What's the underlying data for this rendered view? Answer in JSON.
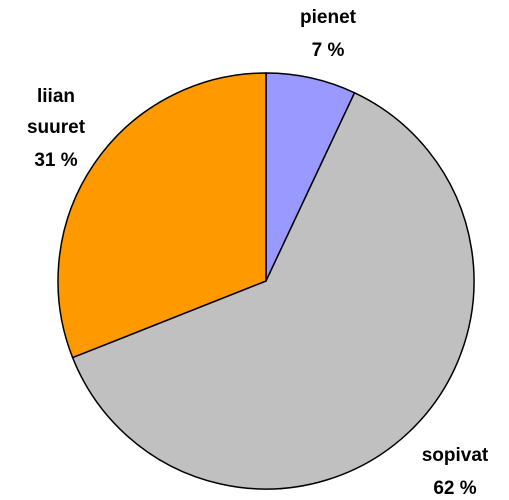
{
  "chart_data": {
    "type": "pie",
    "categories": [
      "pienet",
      "sopivat",
      "liian suuret"
    ],
    "values": [
      7,
      62,
      31
    ],
    "value_labels": [
      "7 %",
      "62 %",
      "31 %"
    ],
    "colors": [
      "#9999ff",
      "#c0c0c0",
      "#ff9900"
    ]
  }
}
